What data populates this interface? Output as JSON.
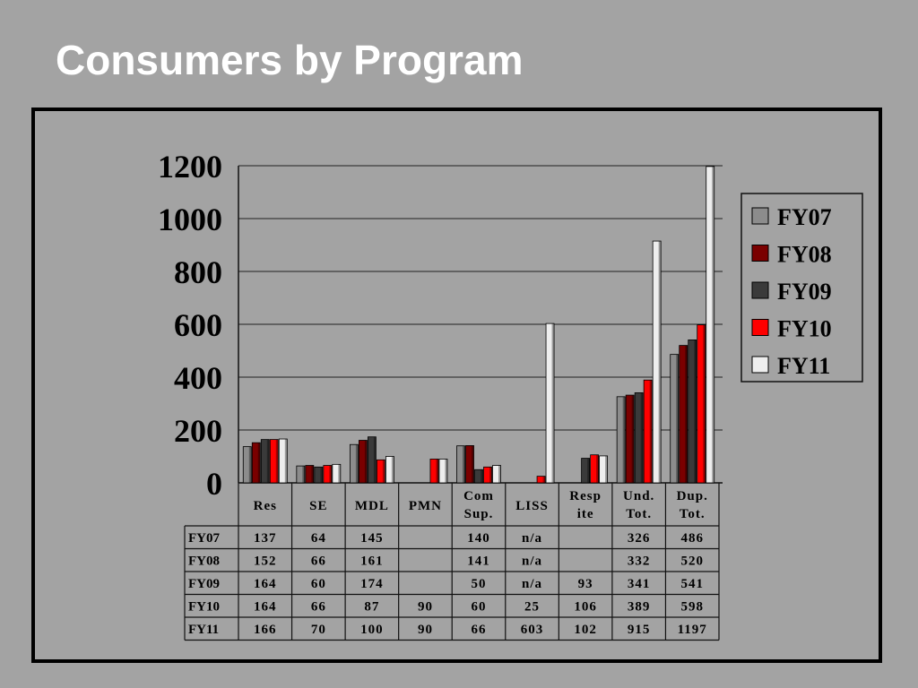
{
  "slide": {
    "title": "Consumers by Program"
  },
  "chart_data": {
    "type": "bar",
    "title": "",
    "xlabel": "",
    "ylabel": "",
    "ylim": [
      0,
      1200
    ],
    "yticks": [
      "0",
      "200",
      "400",
      "600",
      "800",
      "1000",
      "1200"
    ],
    "grid": true,
    "legend_position": "right",
    "categories": [
      [
        "Res"
      ],
      [
        "SE"
      ],
      [
        "MDL"
      ],
      [
        "PMN"
      ],
      [
        "Com",
        "Sup."
      ],
      [
        "LISS"
      ],
      [
        "Resp",
        "ite"
      ],
      [
        "Und.",
        "Tot."
      ],
      [
        "Dup.",
        "Tot."
      ]
    ],
    "series": [
      {
        "name": "FY07",
        "color": "#8c8c8c",
        "values": [
          137,
          64,
          145,
          null,
          140,
          null,
          null,
          326,
          486
        ],
        "labels": [
          "137",
          "64",
          "145",
          "",
          "140",
          "n/a",
          "",
          "326",
          "486"
        ]
      },
      {
        "name": "FY08",
        "color": "#7a0000",
        "values": [
          152,
          66,
          161,
          null,
          141,
          null,
          null,
          332,
          520
        ],
        "labels": [
          "152",
          "66",
          "161",
          "",
          "141",
          "n/a",
          "",
          "332",
          "520"
        ]
      },
      {
        "name": "FY09",
        "color": "#3a3a3a",
        "values": [
          164,
          60,
          174,
          null,
          50,
          null,
          93,
          341,
          541
        ],
        "labels": [
          "164",
          "60",
          "174",
          "",
          "50",
          "n/a",
          "93",
          "341",
          "541"
        ]
      },
      {
        "name": "FY10",
        "color": "#ff0000",
        "values": [
          164,
          66,
          87,
          90,
          60,
          25,
          106,
          389,
          598
        ],
        "labels": [
          "164",
          "66",
          "87",
          "90",
          "60",
          "25",
          "106",
          "389",
          "598"
        ]
      },
      {
        "name": "FY11",
        "color": "#eeeeee",
        "values": [
          166,
          70,
          100,
          90,
          66,
          603,
          102,
          915,
          1197
        ],
        "labels": [
          "166",
          "70",
          "100",
          "90",
          "66",
          "603",
          "102",
          "915",
          "1197"
        ]
      }
    ]
  }
}
